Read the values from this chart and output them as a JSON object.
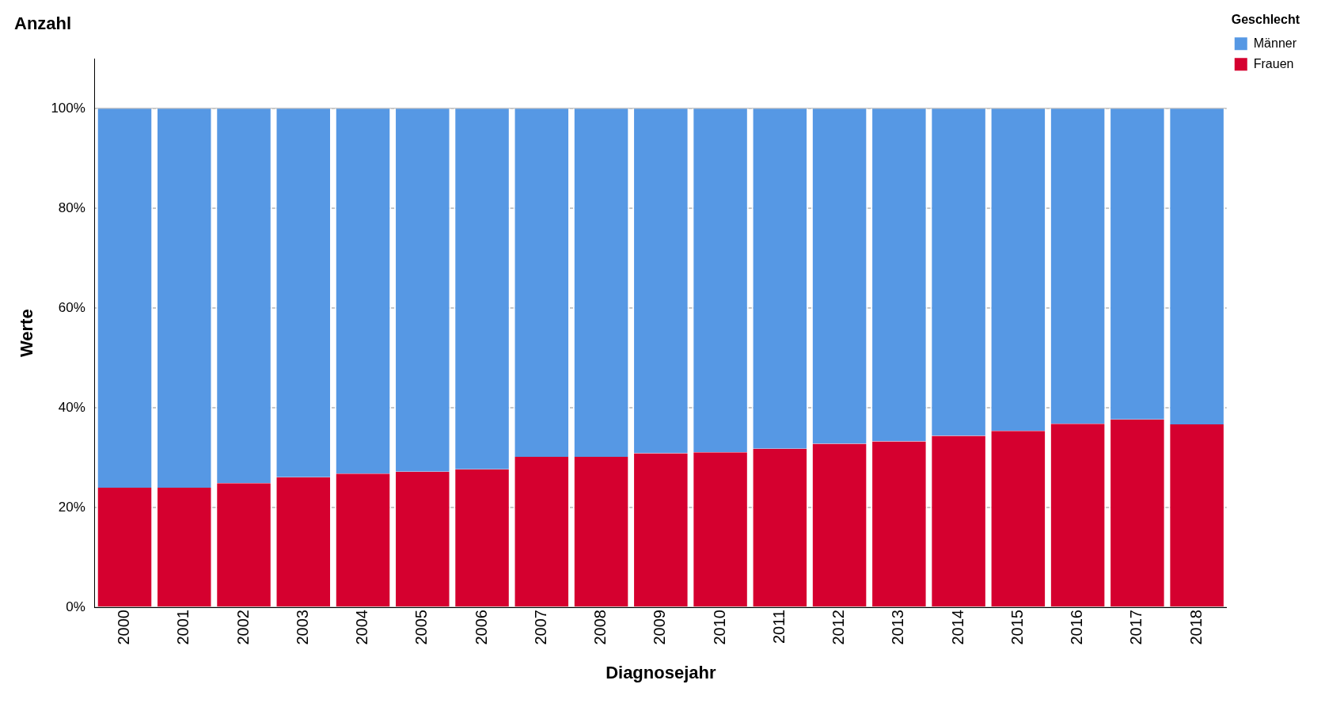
{
  "chart_data": {
    "type": "bar",
    "title": "Anzahl",
    "xlabel": "Diagnosejahr",
    "ylabel": "Werte",
    "legend_title": "Geschlecht",
    "stacked": true,
    "grid": "y",
    "legend": "top right",
    "categories": [
      "2000",
      "2001",
      "2002",
      "2003",
      "2004",
      "2005",
      "2006",
      "2007",
      "2008",
      "2009",
      "2010",
      "2011",
      "2012",
      "2013",
      "2014",
      "2015",
      "2016",
      "2017",
      "2018"
    ],
    "series": [
      {
        "name": "Frauen",
        "color": "#d5002f",
        "values": [
          24.0,
          24.0,
          24.9,
          26.1,
          26.8,
          27.2,
          27.7,
          30.2,
          30.2,
          30.9,
          31.1,
          31.8,
          32.8,
          33.3,
          34.4,
          35.4,
          36.8,
          37.7,
          36.7
        ]
      },
      {
        "name": "Männer",
        "color": "#5698e4",
        "values": [
          76.0,
          76.0,
          75.1,
          73.9,
          73.2,
          72.8,
          72.3,
          69.8,
          69.8,
          69.1,
          68.9,
          68.2,
          67.2,
          66.7,
          65.6,
          64.6,
          63.2,
          62.3,
          63.3
        ]
      }
    ],
    "ylim": [
      0,
      110
    ],
    "yticks": [
      {
        "value": 0,
        "label": "0%"
      },
      {
        "value": 20,
        "label": "20%"
      },
      {
        "value": 40,
        "label": "40%"
      },
      {
        "value": 60,
        "label": "60%"
      },
      {
        "value": 80,
        "label": "80%"
      },
      {
        "value": 100,
        "label": "100%"
      }
    ]
  }
}
